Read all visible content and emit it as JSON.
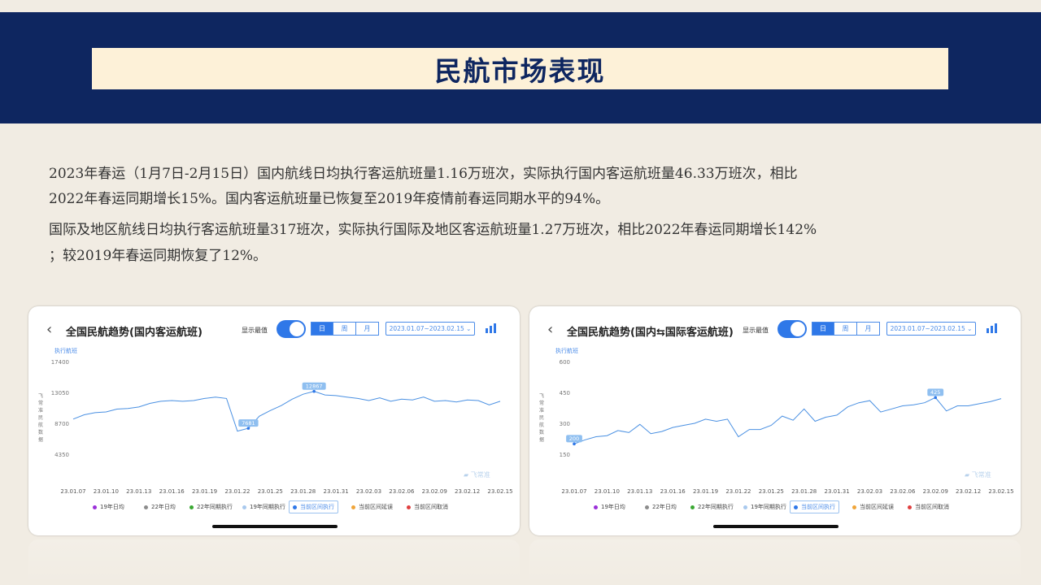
{
  "slide": {
    "title": "民航市场表现",
    "paragraphs": [
      "2023年春运（1月7日-2月15日）国内航线日均执行客运航班量1.16万班次，实际执行国内客运航班量46.33万班次，相比",
      "2022年春运同期增长15%。国内客运航班量已恢复至2019年疫情前春运同期水平的94%。",
      "国际及地区航线日均执行客运航班量317班次，实际执行国际及地区客运航班量1.27万班次，相比2022年春运同期增长142%",
      "；较2019年春运同期恢复了12%。"
    ]
  },
  "cards": [
    {
      "title": "全国民航趋势(国内客运航班)",
      "show_max_label": "显示最值",
      "segments": [
        "日",
        "周",
        "月"
      ],
      "date_range": "2023.01.07~2023.02.15",
      "watermark": "飞常准",
      "y_unit_label": "执行航班",
      "y_axis_vertical_label": "飞常准民航数据"
    },
    {
      "title": "全国民航趋势(国内⇆国际客运航班)",
      "show_max_label": "显示最值",
      "segments": [
        "日",
        "周",
        "月"
      ],
      "date_range": "2023.01.07~2023.02.15",
      "watermark": "飞常准",
      "y_unit_label": "执行航班",
      "y_axis_vertical_label": "飞常准民航数据"
    }
  ],
  "legend": [
    {
      "label": "19年日均",
      "color": "#9b30d9"
    },
    {
      "label": "22年日均",
      "color": "#8c8c8c"
    },
    {
      "label": "22年同期执行",
      "color": "#3aa832"
    },
    {
      "label": "19年同期执行",
      "color": "#a9c9ee"
    },
    {
      "label": "当前区间执行",
      "color": "#2f78e8",
      "selected": true
    },
    {
      "label": "当前区间延误",
      "color": "#f0a53a"
    },
    {
      "label": "当前区间取消",
      "color": "#e04040"
    }
  ],
  "chart_data": [
    {
      "type": "line",
      "title": "全国民航趋势(国内客运航班)",
      "ylabel": "执行航班",
      "ylim": [
        0,
        17400
      ],
      "yticks": [
        4350,
        8700,
        13050,
        17400
      ],
      "xticks": [
        "23.01.07",
        "23.01.10",
        "23.01.13",
        "23.01.16",
        "23.01.19",
        "23.01.22",
        "23.01.25",
        "23.01.28",
        "23.01.31",
        "23.02.03",
        "23.02.06",
        "23.02.09",
        "23.02.12",
        "23.02.15"
      ],
      "series": [
        {
          "color": "#4a90e2",
          "values": [
            9300,
            9900,
            10200,
            10300,
            10700,
            10800,
            11000,
            11500,
            11800,
            11900,
            11800,
            11900,
            12200,
            12400,
            12200,
            7600,
            8000,
            9700,
            10500,
            11200,
            12100,
            12800,
            13200,
            12700,
            12600,
            12400,
            12200,
            11900,
            12300,
            11800,
            12100,
            12000,
            12400,
            11800,
            11900,
            11700,
            12000,
            11900,
            11300,
            11800
          ]
        }
      ],
      "annotations": [
        {
          "label": "7681",
          "index": 16
        },
        {
          "label": "12867",
          "index": 22
        }
      ]
    },
    {
      "type": "line",
      "title": "全国民航趋势(国内⇆国际客运航班)",
      "ylabel": "执行航班",
      "ylim": [
        0,
        600
      ],
      "yticks": [
        150,
        300,
        450,
        600
      ],
      "xticks": [
        "23.01.07",
        "23.01.10",
        "23.01.13",
        "23.01.16",
        "23.01.19",
        "23.01.22",
        "23.01.25",
        "23.01.28",
        "23.01.31",
        "23.02.03",
        "23.02.06",
        "23.02.09",
        "23.02.12",
        "23.02.15"
      ],
      "series": [
        {
          "color": "#4a90e2",
          "values": [
            200,
            220,
            235,
            240,
            265,
            255,
            295,
            250,
            260,
            280,
            290,
            300,
            320,
            310,
            320,
            235,
            270,
            270,
            290,
            335,
            315,
            370,
            310,
            330,
            340,
            380,
            400,
            410,
            355,
            370,
            385,
            390,
            400,
            425,
            360,
            385,
            385,
            395,
            405,
            420
          ]
        }
      ],
      "annotations": [
        {
          "label": "200",
          "index": 0
        },
        {
          "label": "425",
          "index": 33
        }
      ]
    }
  ]
}
